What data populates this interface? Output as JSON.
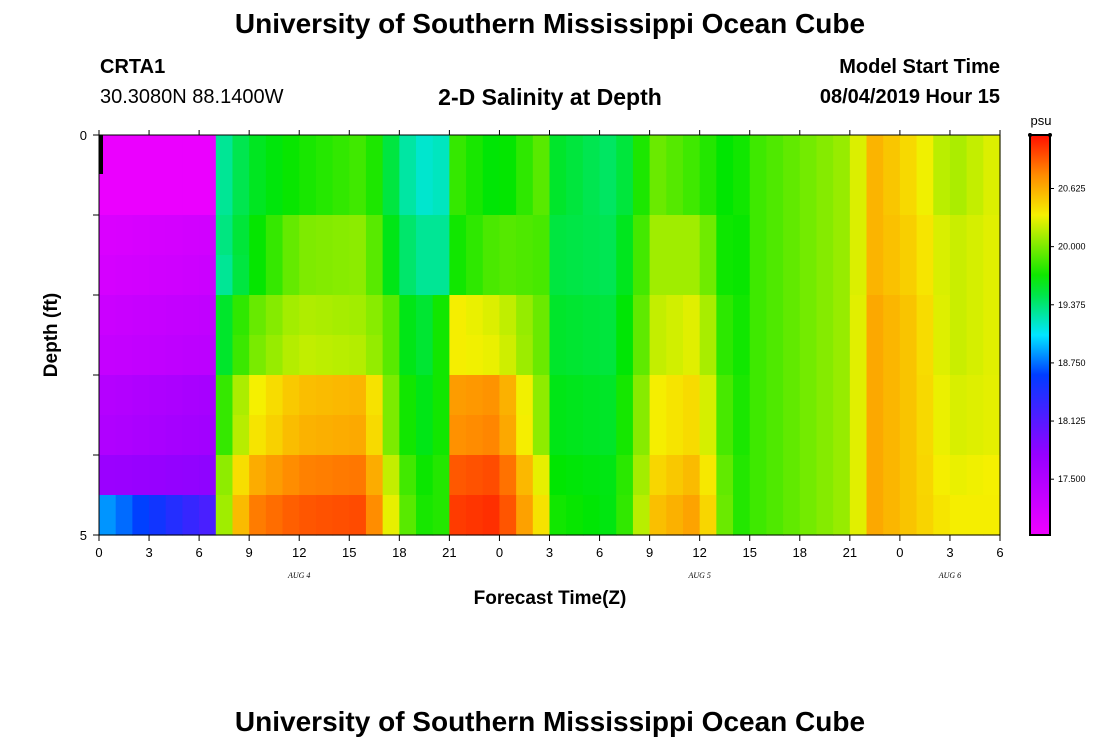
{
  "header": {
    "title": "University of Southern Mississippi Ocean Cube",
    "station": "CRTA1",
    "coords": "30.3080N 88.1400W",
    "subtitle": "2-D Salinity at Depth",
    "model_start_label": "Model Start Time",
    "model_start": "08/04/2019 Hour 15"
  },
  "footer": {
    "title": "University of Southern Mississippi Ocean Cube"
  },
  "chart_data": {
    "type": "heatmap",
    "title": "2-D Salinity at Depth",
    "xlabel": "Forecast Time(Z)",
    "ylabel": "Depth (ft)",
    "x_range_hours": [
      0,
      54
    ],
    "y_range_ft": [
      0,
      5
    ],
    "x_ticks": [
      "0",
      "3",
      "6",
      "9",
      "12",
      "15",
      "18",
      "21",
      "0",
      "3",
      "6",
      "9",
      "12",
      "15",
      "18",
      "21",
      "0",
      "3",
      "6"
    ],
    "y_ticks": [
      "0",
      "5"
    ],
    "date_labels": [
      {
        "text": "AUG 4",
        "hour": 12
      },
      {
        "text": "AUG 5",
        "hour": 36
      },
      {
        "text": "AUG 6",
        "hour": 51
      }
    ],
    "colorbar": {
      "unit": "psu",
      "min": 16.9,
      "max": 21.2,
      "ticks": [
        "17.500",
        "18.125",
        "18.750",
        "19.375",
        "20.000",
        "20.625"
      ],
      "tick_values": [
        17.5,
        18.125,
        18.75,
        19.375,
        20.0,
        20.625
      ]
    },
    "depth_levels_ft": [
      0.25,
      0.75,
      1.25,
      1.75,
      2.25,
      2.75,
      3.25,
      3.75,
      4.25,
      4.75
    ],
    "key_times_hours": [
      0,
      6.5,
      7.5,
      9,
      12,
      16,
      17.5,
      19,
      20.5,
      21.5,
      24,
      26.5,
      27.5,
      31,
      33.5,
      36,
      38,
      39,
      45,
      46.5,
      49,
      51,
      54
    ],
    "salinity_profiles_psu": [
      [
        16.95,
        16.95,
        19.3,
        19.55,
        19.7,
        19.85,
        19.5,
        19.15,
        19.2,
        19.8,
        19.6,
        19.9,
        19.55,
        19.4,
        19.95,
        19.8,
        19.6,
        19.8,
        20.1,
        20.6,
        20.4,
        20.1,
        20.3
      ],
      [
        16.95,
        16.95,
        19.3,
        19.55,
        19.7,
        19.85,
        19.5,
        19.15,
        19.2,
        19.8,
        19.6,
        19.9,
        19.55,
        19.4,
        19.95,
        19.8,
        19.6,
        19.8,
        20.1,
        20.6,
        20.4,
        20.1,
        20.3
      ],
      [
        17.1,
        17.2,
        19.35,
        19.6,
        20.0,
        20.05,
        19.6,
        19.3,
        19.3,
        19.7,
        19.9,
        19.85,
        19.5,
        19.45,
        20.1,
        20.1,
        19.55,
        19.8,
        20.1,
        20.6,
        20.45,
        20.2,
        20.3
      ],
      [
        17.15,
        17.25,
        19.3,
        19.6,
        20.0,
        20.05,
        19.6,
        19.3,
        19.3,
        19.7,
        19.9,
        19.85,
        19.5,
        19.45,
        20.1,
        20.1,
        19.55,
        19.8,
        20.1,
        20.6,
        20.45,
        20.2,
        20.3
      ],
      [
        17.25,
        17.35,
        19.55,
        19.9,
        20.15,
        20.1,
        19.9,
        19.45,
        19.7,
        20.35,
        20.25,
        19.95,
        19.55,
        19.5,
        20.2,
        20.3,
        19.6,
        19.8,
        20.1,
        20.65,
        20.5,
        20.2,
        20.3
      ],
      [
        17.3,
        17.4,
        19.55,
        19.95,
        20.2,
        20.15,
        19.9,
        19.45,
        19.7,
        20.35,
        20.3,
        19.95,
        19.55,
        19.5,
        20.2,
        20.3,
        19.6,
        19.8,
        20.1,
        20.65,
        20.5,
        20.2,
        20.3
      ],
      [
        17.45,
        17.6,
        19.8,
        20.3,
        20.55,
        20.6,
        20.0,
        19.55,
        19.7,
        20.7,
        20.75,
        20.05,
        19.6,
        19.55,
        20.35,
        20.45,
        19.65,
        19.8,
        20.1,
        20.65,
        20.5,
        20.25,
        20.3
      ],
      [
        17.5,
        17.65,
        19.8,
        20.35,
        20.6,
        20.65,
        20.0,
        19.55,
        19.7,
        20.75,
        20.8,
        20.05,
        19.6,
        19.55,
        20.35,
        20.45,
        19.65,
        19.8,
        20.1,
        20.65,
        20.5,
        20.25,
        20.3
      ],
      [
        17.7,
        17.8,
        20.05,
        20.6,
        20.8,
        20.85,
        20.2,
        19.65,
        19.75,
        20.95,
        21.0,
        20.3,
        19.65,
        19.6,
        20.45,
        20.6,
        19.7,
        19.8,
        20.1,
        20.65,
        20.5,
        20.3,
        20.35
      ],
      [
        18.9,
        18.2,
        20.1,
        20.8,
        20.95,
        21.0,
        20.3,
        19.7,
        19.75,
        21.05,
        21.1,
        20.4,
        19.7,
        19.6,
        20.55,
        20.7,
        19.7,
        19.8,
        20.1,
        20.65,
        20.5,
        20.35,
        20.35
      ]
    ]
  }
}
